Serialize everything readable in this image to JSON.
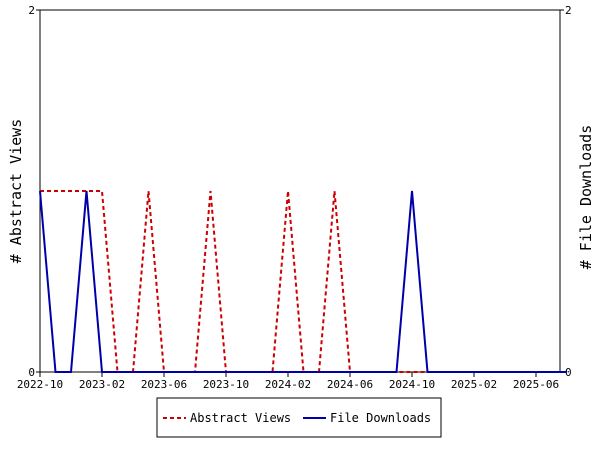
{
  "chart_data": {
    "type": "line",
    "title": "",
    "ylabel_left": "# Abstract Views",
    "ylabel_right": "# File Downloads",
    "ylim": [
      0,
      2
    ],
    "y_ticks": [
      0,
      2
    ],
    "x_tick_labels": [
      "2022-10",
      "2023-02",
      "2023-06",
      "2023-10",
      "2024-02",
      "2024-06",
      "2024-10",
      "2025-02",
      "2025-06"
    ],
    "grid": false,
    "legend_position": "bottom",
    "x": [
      "2022-10",
      "2022-11",
      "2022-12",
      "2023-01",
      "2023-02",
      "2023-03",
      "2023-04",
      "2023-05",
      "2023-06",
      "2023-07",
      "2023-08",
      "2023-09",
      "2023-10",
      "2023-11",
      "2023-12",
      "2024-01",
      "2024-02",
      "2024-03",
      "2024-04",
      "2024-05",
      "2024-06",
      "2024-07",
      "2024-08",
      "2024-09",
      "2024-10",
      "2024-11",
      "2024-12",
      "2025-01",
      "2025-02",
      "2025-03",
      "2025-04",
      "2025-05",
      "2025-06",
      "2025-07",
      "2025-08"
    ],
    "series": [
      {
        "name": "Abstract Views",
        "color": "#cc0000",
        "dash": true,
        "axis": "left",
        "values": [
          1,
          1,
          1,
          1,
          1,
          0,
          0,
          1,
          0,
          0,
          0,
          1,
          0,
          0,
          0,
          0,
          1,
          0,
          0,
          1,
          0,
          0,
          0,
          0,
          0,
          0,
          0,
          0,
          0,
          0,
          0,
          0,
          0,
          0,
          0
        ]
      },
      {
        "name": "File Downloads",
        "color": "#0000aa",
        "dash": false,
        "axis": "right",
        "values": [
          1,
          0,
          0,
          1,
          0,
          0,
          0,
          0,
          0,
          0,
          0,
          0,
          0,
          0,
          0,
          0,
          0,
          0,
          0,
          0,
          0,
          0,
          0,
          0,
          1,
          0,
          0,
          0,
          0,
          0,
          0,
          0,
          0,
          0,
          0
        ]
      }
    ]
  }
}
